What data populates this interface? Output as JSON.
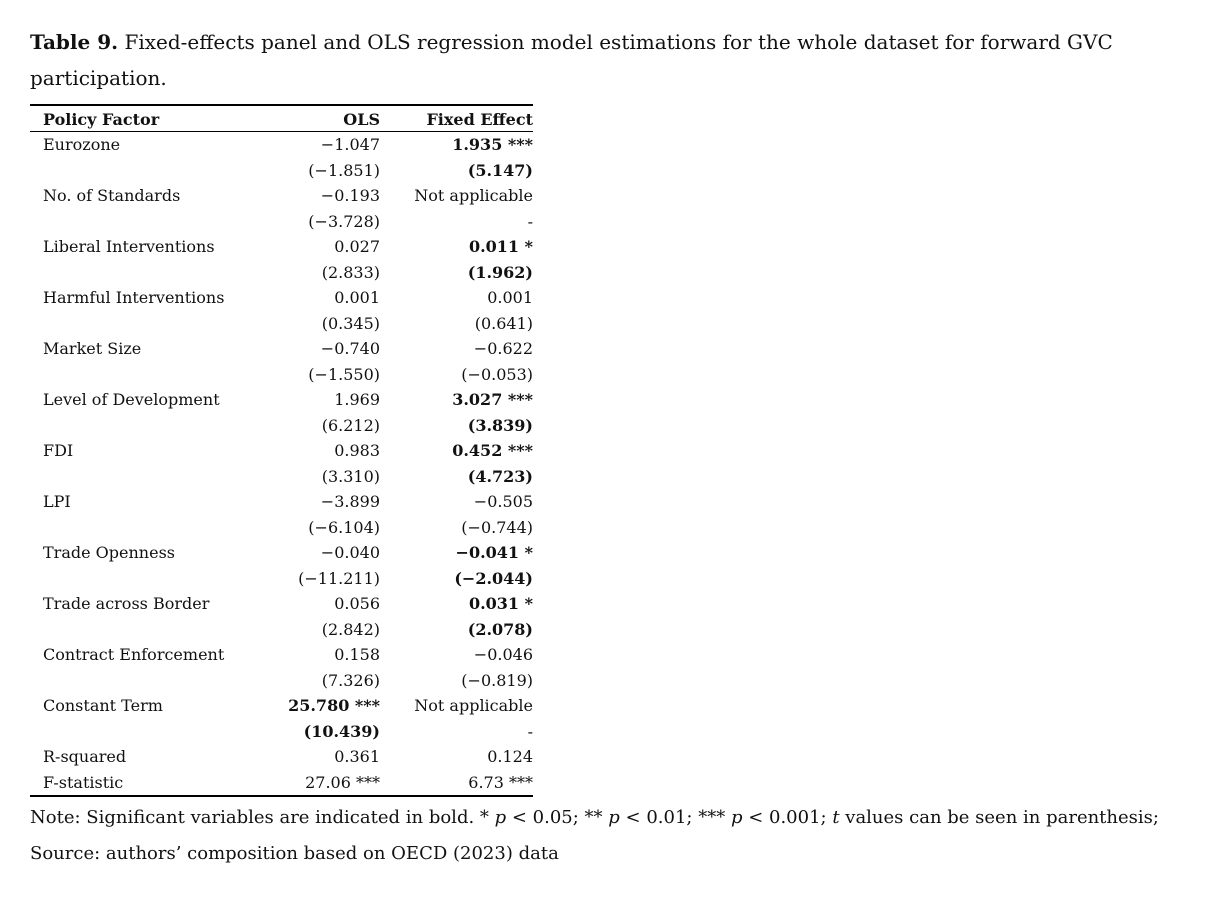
{
  "caption": {
    "label": "Table 9.",
    "text": "Fixed-effects panel and OLS regression model estimations for the whole dataset for forward GVC participation."
  },
  "table": {
    "header": [
      "Policy Factor",
      "OLS",
      "Fixed Effect"
    ],
    "rows": [
      {
        "factor": "Eurozone",
        "ols": "−1.047",
        "ols_t": "(−1.851)",
        "fe": "1.935 ***",
        "fe_t": "(5.147)",
        "fe_bold": true
      },
      {
        "factor": "No. of Standards",
        "ols": "−0.193",
        "ols_t": "(−3.728)",
        "fe": "Not applicable",
        "fe_t": "-"
      },
      {
        "factor": "Liberal Interventions",
        "ols": "0.027",
        "ols_t": "(2.833)",
        "fe": "0.011 *",
        "fe_t": "(1.962)",
        "fe_bold": true
      },
      {
        "factor": "Harmful Interventions",
        "ols": "0.001",
        "ols_t": "(0.345)",
        "fe": "0.001",
        "fe_t": "(0.641)"
      },
      {
        "factor": "Market Size",
        "ols": "−0.740",
        "ols_t": "(−1.550)",
        "fe": "−0.622",
        "fe_t": "(−0.053)"
      },
      {
        "factor": "Level of Development",
        "ols": "1.969",
        "ols_t": "(6.212)",
        "fe": "3.027 ***",
        "fe_t": "(3.839)",
        "fe_bold": true
      },
      {
        "factor": "FDI",
        "ols": "0.983",
        "ols_t": "(3.310)",
        "fe": "0.452 ***",
        "fe_t": "(4.723)",
        "fe_bold": true
      },
      {
        "factor": "LPI",
        "ols": "−3.899",
        "ols_t": "(−6.104)",
        "fe": "−0.505",
        "fe_t": "(−0.744)"
      },
      {
        "factor": "Trade Openness",
        "ols": "−0.040",
        "ols_t": "(−11.211)",
        "fe": "−0.041 *",
        "fe_t": "(−2.044)",
        "fe_bold": true
      },
      {
        "factor": "Trade across Border",
        "ols": "0.056",
        "ols_t": "(2.842)",
        "fe": "0.031 *",
        "fe_t": "(2.078)",
        "fe_bold": true
      },
      {
        "factor": "Contract Enforcement",
        "ols": "0.158",
        "ols_t": "(7.326)",
        "fe": "−0.046",
        "fe_t": "(−0.819)"
      },
      {
        "factor": "Constant Term",
        "ols": "25.780 ***",
        "ols_t": "(10.439)",
        "fe": "Not applicable",
        "fe_t": "-",
        "ols_bold": true
      },
      {
        "factor": "R-squared",
        "ols": "0.361",
        "fe": "0.124"
      },
      {
        "factor": "F-statistic",
        "ols": "27.06 ***",
        "fe": "6.73 ***"
      }
    ]
  },
  "note": [
    {
      "text": "Note: Significant variables are indicated in bold. * "
    },
    {
      "text": "p",
      "italic": true
    },
    {
      "text": " < 0.05; ** "
    },
    {
      "text": "p",
      "italic": true
    },
    {
      "text": " < 0.01; *** "
    },
    {
      "text": "p",
      "italic": true
    },
    {
      "text": " < 0.001; "
    },
    {
      "text": "t",
      "italic": true
    },
    {
      "text": " values can be seen in parenthesis; Source: authors’ composition based on OECD (2023) data"
    }
  ]
}
